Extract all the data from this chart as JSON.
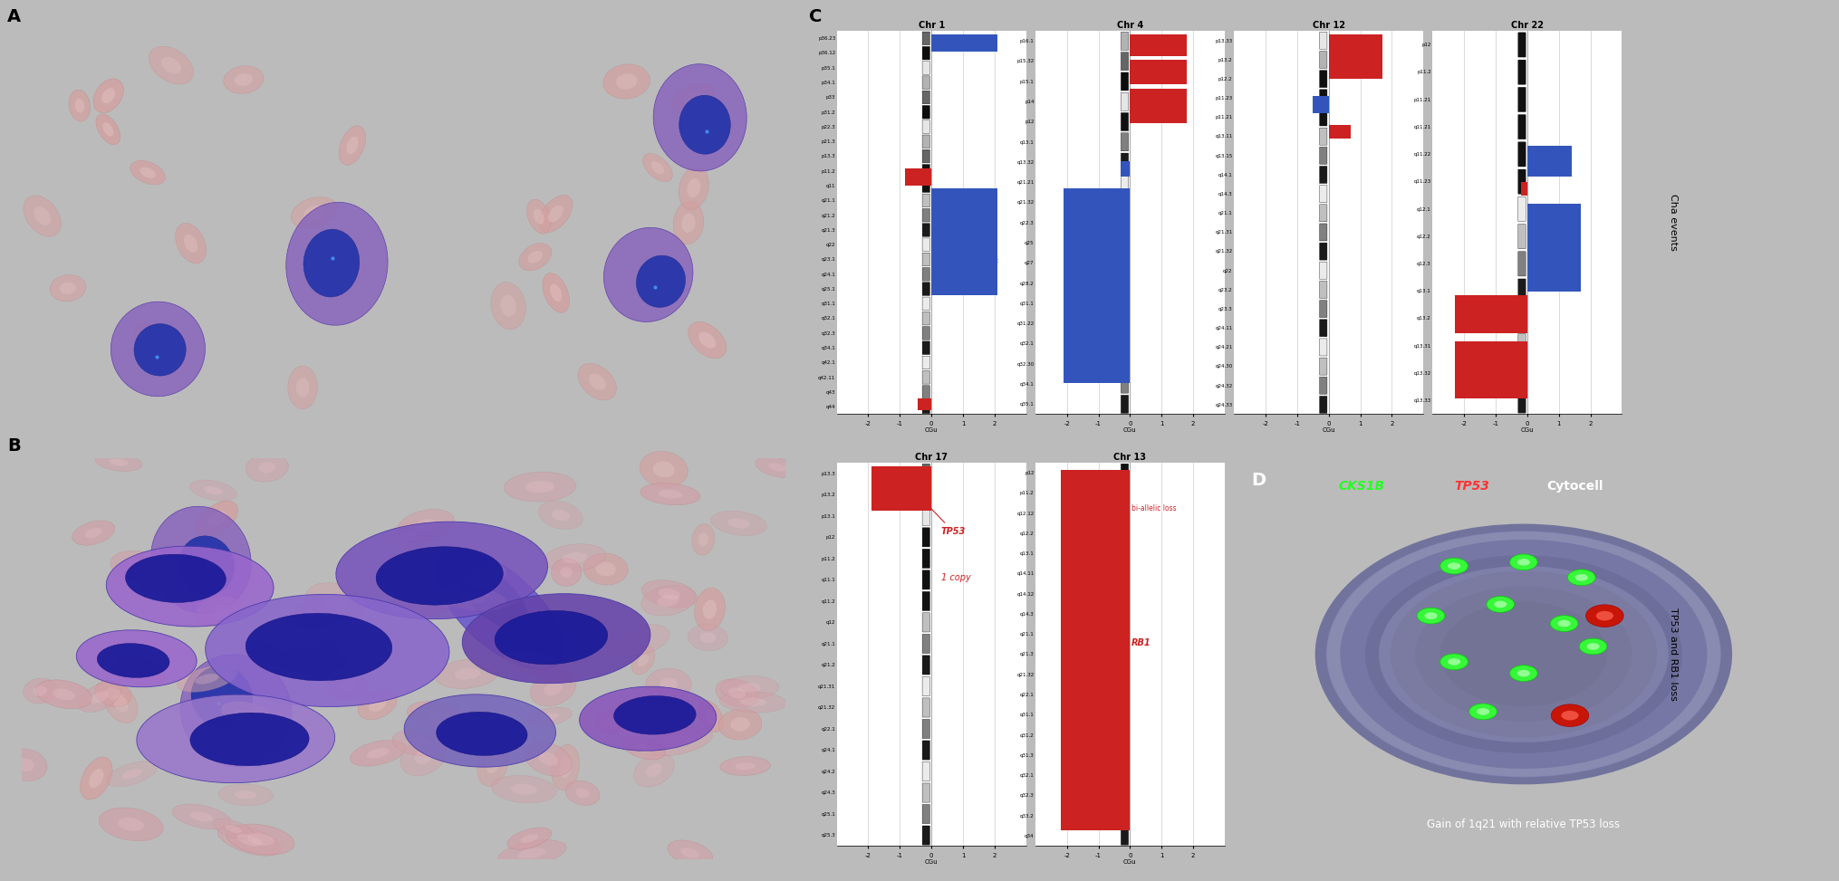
{
  "figure_bg": "#bbbbbb",
  "chr1_bands": [
    "p36.23",
    "p36.12",
    "p35.1",
    "p34.1",
    "p33",
    "p31.2",
    "p22.3",
    "p21.3",
    "p13.3",
    "p11.2",
    "q11",
    "q21.1",
    "q21.2",
    "q21.3",
    "q22",
    "q23.1",
    "q24.1",
    "q25.1",
    "q31.1",
    "q32.1",
    "q32.3",
    "q34.1",
    "q42.1",
    "q42.11",
    "q43",
    "q44"
  ],
  "chr4_bands": [
    "p16.1",
    "p15.32",
    "p15.1",
    "p14",
    "p12",
    "q13.1",
    "q13.32",
    "q21.21",
    "q21.32",
    "q22.3",
    "q25",
    "q27",
    "q28.2",
    "q31.1",
    "q31.22",
    "q32.1",
    "q32.30",
    "q34.1",
    "q35.1"
  ],
  "chr12_bands": [
    "p13.33",
    "p13.2",
    "p12.2",
    "p11.23",
    "p11.21",
    "q13.11",
    "q13.15",
    "q14.1",
    "q14.3",
    "q21.1",
    "q21.31",
    "q21.32",
    "q22",
    "q23.2",
    "q23.3",
    "q24.11",
    "q24.21",
    "q24.30",
    "q24.32",
    "q24.33"
  ],
  "chr22_bands": [
    "p12",
    "p11.2",
    "p11.21",
    "q11.21",
    "q11.22",
    "q11.23",
    "q12.1",
    "q12.2",
    "q12.3",
    "q13.1",
    "q13.2",
    "q13.31",
    "q13.32",
    "q13.33"
  ],
  "chr17_bands": [
    "p13.3",
    "p13.2",
    "p13.1",
    "p12",
    "p11.2",
    "q11.1",
    "q11.2",
    "q12",
    "q21.1",
    "q21.2",
    "q21.31",
    "q21.32",
    "q22.1",
    "q24.1",
    "q24.2",
    "q24.3",
    "q25.1",
    "q25.3"
  ],
  "chr13_bands": [
    "p12",
    "p11.2",
    "q12.12",
    "q12.2",
    "q13.1",
    "q14.11",
    "q14.12",
    "q14.3",
    "q21.1",
    "q21.3",
    "q21.32",
    "q22.1",
    "q31.1",
    "q31.2",
    "q31.3",
    "q32.1",
    "q32.3",
    "q33.2",
    "q34"
  ],
  "panel_a_bg": "#d8e8d8",
  "panel_b_bg": "#d0cce0",
  "panel_d_bg": "#000000",
  "label_fontsize": 14,
  "side_label_fontsize": 8,
  "chr_title_fontsize": 7,
  "chr_band_fontsize": 4,
  "chr_tick_fontsize": 5,
  "blue_bar": "#3355bb",
  "red_bar": "#cc2222",
  "cha_events_label": "Cha events",
  "tp53_rb1_label": "TP53 and RB1 loss"
}
